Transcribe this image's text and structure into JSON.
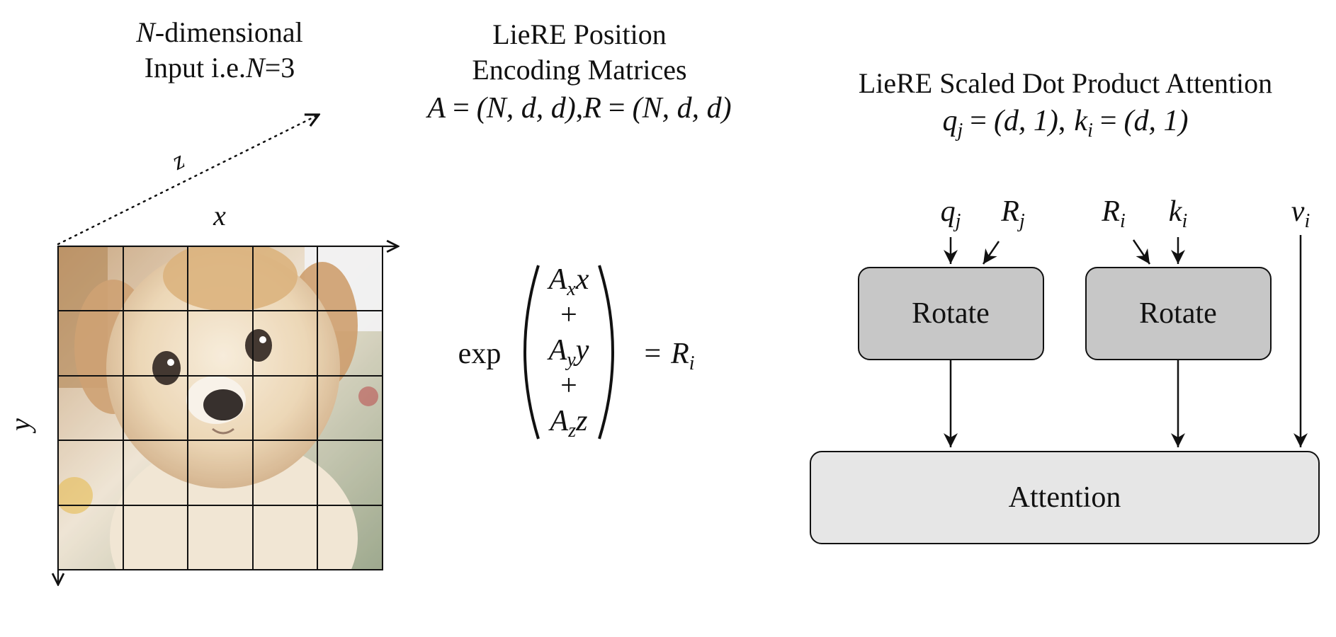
{
  "left_panel": {
    "title_line1_var": "N",
    "title_line1_rest": "-dimensional",
    "title_line2_pre": "Input i.e.",
    "title_line2_var": "N",
    "title_line2_post": "=3",
    "axis_x": "x",
    "axis_y": "y",
    "axis_z": "z",
    "grid_cols": 5,
    "grid_rows": 5
  },
  "middle_panel": {
    "title_line1": "LieRE Position",
    "title_line2": "Encoding Matrices",
    "shapes_A": "A",
    "shapes_R": "R",
    "shapes_tuple": "(N, d, d)",
    "equals": "=",
    "comma": ",",
    "exp_label": "exp",
    "term1_base": "A",
    "term1_sub": "x",
    "term1_var": "x",
    "plus1": "+",
    "term2_base": "A",
    "term2_sub": "y",
    "term2_var": "y",
    "plus2": "+",
    "term3_base": "A",
    "term3_sub": "z",
    "term3_var": "z",
    "result_base": "R",
    "result_sub": "i"
  },
  "right_panel": {
    "title": "LieRE Scaled Dot Product Attention",
    "q_base": "q",
    "q_sub": "j",
    "k_base": "k",
    "k_sub": "i",
    "shape_tuple": "(d, 1)",
    "input_q_base": "q",
    "input_q_sub": "j",
    "input_Rj_base": "R",
    "input_Rj_sub": "j",
    "input_Ri_base": "R",
    "input_Ri_sub": "i",
    "input_k_base": "k",
    "input_k_sub": "i",
    "input_v_base": "v",
    "input_v_sub": "i",
    "rotate_left_label": "Rotate",
    "rotate_right_label": "Rotate",
    "attention_label": "Attention"
  },
  "colors": {
    "rotate_fill": "#c7c7c7",
    "attention_fill": "#e6e6e6",
    "stroke": "#111111"
  }
}
